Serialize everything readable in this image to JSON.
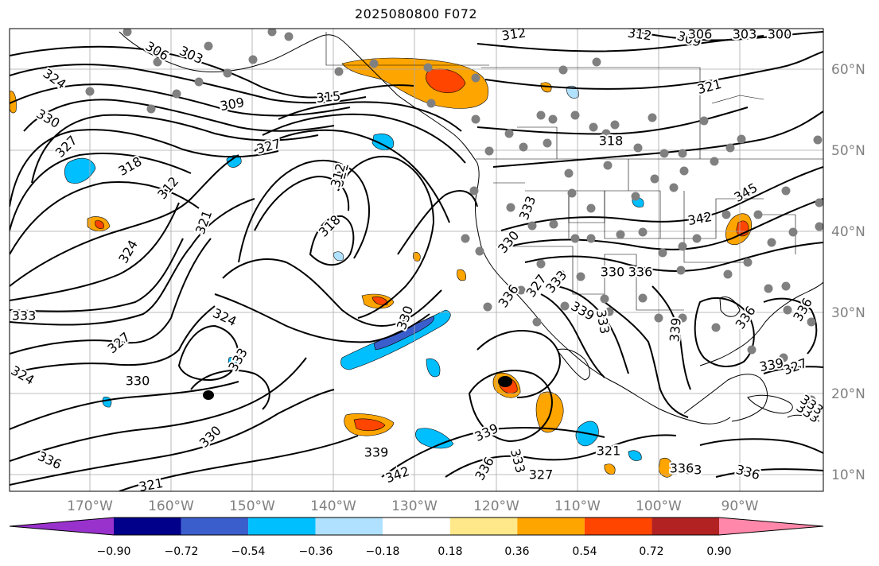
{
  "title": "2025080800 F072",
  "latitude_labels": [
    "60°N",
    "50°N",
    "40°N",
    "30°N",
    "20°N",
    "10°N"
  ],
  "longitude_labels": [
    "170°W",
    "160°W",
    "150°W",
    "140°W",
    "130°W",
    "120°W",
    "110°W",
    "100°W",
    "90°W"
  ],
  "colorbar": {
    "ticks": [
      "−0.90",
      "−0.72",
      "−0.54",
      "−0.36",
      "−0.18",
      "0.18",
      "0.36",
      "0.54",
      "0.72",
      "0.90"
    ],
    "colors": [
      "#9932cc",
      "#00008b",
      "#3a5fcd",
      "#00bfff",
      "#b0e2ff",
      "#ffffff",
      "#ffe88a",
      "#ffa500",
      "#ff4500",
      "#b22222",
      "#ff88aa"
    ]
  },
  "contour_labels": [
    "306",
    "303",
    "309",
    "312",
    "312",
    "309",
    "306",
    "303",
    "300",
    "324",
    "330",
    "327",
    "318",
    "312",
    "315",
    "309",
    "327",
    "321",
    "318",
    "321",
    "318",
    "312",
    "324",
    "321",
    "330",
    "324",
    "327",
    "333",
    "321",
    "330",
    "324",
    "333",
    "336",
    "330",
    "339",
    "342",
    "336",
    "333",
    "327",
    "339",
    "336",
    "339",
    "333",
    "330",
    "336",
    "339",
    "333",
    "336",
    "333",
    "327",
    "336",
    "342",
    "345",
    "333",
    "330",
    "327",
    "336",
    "321",
    "333",
    "339",
    "336",
    "333"
  ],
  "accent_colors": {
    "contour": "#000000",
    "grid": "#a9a9a9",
    "station": "#808080",
    "coast": "#000000"
  }
}
